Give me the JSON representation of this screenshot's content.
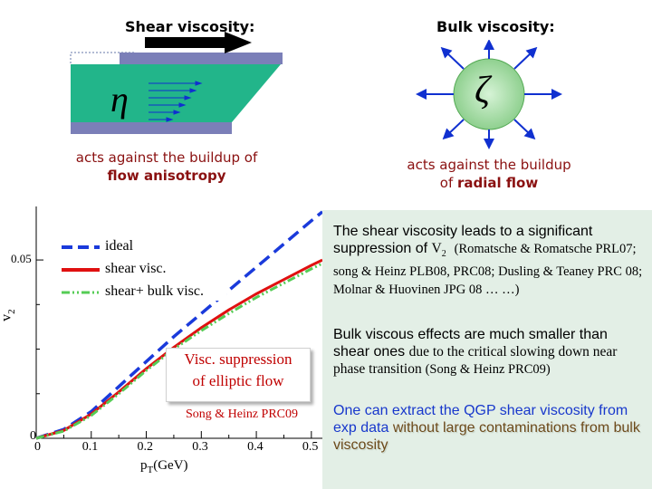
{
  "shear": {
    "title": "Shear viscosity:",
    "symbol": "η",
    "caption_line1": "acts against the buildup of",
    "caption_line2": "flow anisotropy"
  },
  "bulk": {
    "title": "Bulk viscosity:",
    "symbol": "ζ",
    "caption_line1": "acts against the buildup",
    "caption_line2_prefix": "of ",
    "caption_line2_bold": "radial flow"
  },
  "plot": {
    "y_label": "v",
    "y_label_sub": "2",
    "x_label": "p",
    "x_label_sub": "T",
    "x_label_unit": "(GeV)",
    "y_tick": "0.05",
    "y_tick_zero": "0",
    "x_ticks": [
      "0",
      "0.1",
      "0.2",
      "0.3",
      "0.4",
      "0.5"
    ],
    "legend": [
      "ideal",
      "shear visc.",
      "shear+ bulk visc."
    ],
    "inset_line1": "Visc. suppression",
    "inset_line2": "of  elliptic flow",
    "citation": "Song & Heinz PRC09",
    "colors": {
      "ideal": "#1a3adb",
      "shear": "#e01010",
      "bulk": "#55cc55"
    }
  },
  "chart_data": {
    "type": "line",
    "title": "",
    "xlabel": "pT(GeV)",
    "ylabel": "v2",
    "xlim": [
      0,
      0.52
    ],
    "ylim": [
      0,
      0.065
    ],
    "series": [
      {
        "name": "ideal",
        "x": [
          0.0,
          0.05,
          0.1,
          0.15,
          0.2,
          0.25,
          0.3,
          0.35,
          0.4,
          0.45,
          0.5,
          0.52
        ],
        "y": [
          0.0,
          0.0025,
          0.0075,
          0.0145,
          0.0215,
          0.0285,
          0.035,
          0.0415,
          0.048,
          0.0545,
          0.061,
          0.0635
        ]
      },
      {
        "name": "shear visc.",
        "x": [
          0.0,
          0.05,
          0.1,
          0.15,
          0.2,
          0.25,
          0.3,
          0.35,
          0.4,
          0.45,
          0.5,
          0.52
        ],
        "y": [
          0.0,
          0.0022,
          0.0068,
          0.013,
          0.0195,
          0.0255,
          0.031,
          0.036,
          0.0405,
          0.0445,
          0.0485,
          0.05
        ]
      },
      {
        "name": "shear+ bulk visc.",
        "x": [
          0.0,
          0.05,
          0.1,
          0.15,
          0.2,
          0.25,
          0.3,
          0.35,
          0.4,
          0.45,
          0.5,
          0.52
        ],
        "y": [
          0.0,
          0.002,
          0.0064,
          0.0125,
          0.019,
          0.025,
          0.0302,
          0.035,
          0.0395,
          0.0435,
          0.0475,
          0.049
        ]
      }
    ]
  },
  "text_panel": {
    "p1_main": "The shear viscosity leads to a significant suppression of ",
    "p1_v": "V",
    "p1_v_sub": "2",
    "p1_refs": "(Romatsche & Romatsche PRL07; song & Heinz PLB08, PRC08;  Dusling & Teaney PRC 08; Molnar & Huovinen JPG 08 … …)",
    "p2_main": "Bulk viscous effects are much smaller than shear ones ",
    "p2_serif": "due to the critical slowing down near phase transition ",
    "p2_ref": "(Song & Heinz PRC09)",
    "p3_main": "One can extract the QGP shear viscosity from exp data ",
    "p3_highlight": "without large contaminations from bulk viscosity"
  }
}
